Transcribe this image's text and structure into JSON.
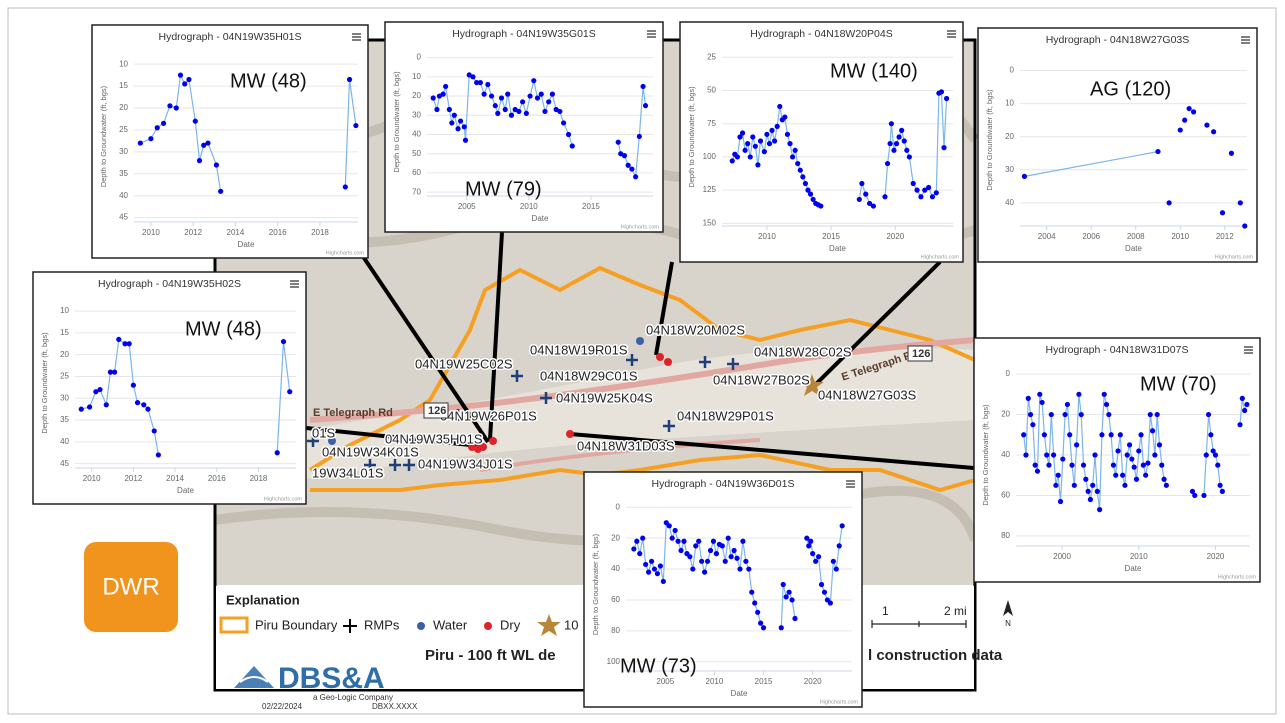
{
  "chart_data": [
    {
      "type": "line",
      "title": "Hydrograph - 04N19W35H01S",
      "annotation": "MW (48)",
      "y_label": "Depth to Groundwater (ft, bgs)",
      "x_label": "Date",
      "credit": "Highcharts.com",
      "color": "#0000ee",
      "line_color": "#7cb5ec",
      "reversed": true,
      "grid": true,
      "xlim": [
        2009.2,
        2019.8
      ],
      "xticks": [
        2010,
        2012,
        2014,
        2016,
        2018
      ],
      "ylim": [
        7,
        46
      ],
      "yticks": [
        10,
        15,
        20,
        25,
        30,
        35,
        40,
        45
      ],
      "x": [
        2009.5,
        2010,
        2010.3,
        2010.6,
        2010.9,
        2011.2,
        2011.4,
        2011.6,
        2011.8,
        2012.1,
        2012.3,
        2012.5,
        2012.7,
        2013.1,
        2013.3,
        null,
        2019.2,
        2019.4,
        2019.7
      ],
      "values": [
        28,
        27,
        24.5,
        23.5,
        19.5,
        20,
        12.5,
        14.5,
        13.5,
        23,
        32,
        28.5,
        28,
        33,
        39,
        null,
        38,
        13.5,
        24
      ]
    },
    {
      "type": "line",
      "title": "Hydrograph - 04N19W35G01S",
      "annotation": "MW (79)",
      "y_label": "Depth to Groundwater (ft, bgs)",
      "x_label": "Date",
      "credit": "Highcharts.com",
      "color": "#0000ee",
      "line_color": "#7cb5ec",
      "reversed": true,
      "grid": true,
      "xlim": [
        2001.8,
        2020
      ],
      "xticks": [
        2005,
        2010,
        2015
      ],
      "ylim": [
        -5,
        72
      ],
      "yticks": [
        0,
        10,
        20,
        30,
        40,
        50,
        60,
        70
      ],
      "x": [
        2002.3,
        2002.6,
        2002.8,
        2003.1,
        2003.3,
        2003.6,
        2003.8,
        2004,
        2004.3,
        2004.5,
        2004.8,
        2004.9,
        2005.2,
        2005.5,
        2005.8,
        2006.1,
        2006.4,
        2006.7,
        2007,
        2007.3,
        2007.5,
        2007.8,
        2008.1,
        2008.3,
        2008.6,
        2008.9,
        2009.2,
        2009.5,
        2009.8,
        2010.1,
        2010.4,
        2010.7,
        2011,
        2011.3,
        2011.6,
        2011.9,
        2012.2,
        2012.5,
        2012.8,
        2013.2,
        2013.5,
        null,
        2017.2,
        2017.4,
        2017.7,
        2018,
        2018.3,
        2018.6,
        2018.9,
        2019.2,
        2019.4
      ],
      "values": [
        21,
        27,
        20,
        19,
        15,
        27,
        34,
        30,
        37,
        33,
        36,
        43,
        9,
        10,
        13,
        13,
        19,
        14,
        20,
        25,
        29,
        21,
        27,
        19,
        30,
        27,
        28,
        23,
        29,
        20,
        12,
        21,
        19,
        28,
        23,
        19,
        27,
        28,
        34,
        40,
        46,
        null,
        44,
        50,
        51,
        56,
        58,
        62,
        41,
        15,
        25
      ]
    },
    {
      "type": "line",
      "title": "Hydrograph - 04N18W20P04S",
      "annotation": "MW (140)",
      "y_label": "Depth to Groundwater (ft, bgs)",
      "x_label": "Date",
      "credit": "Highcharts.com",
      "color": "#0000ee",
      "line_color": "#7cb5ec",
      "reversed": true,
      "grid": true,
      "xlim": [
        2006.5,
        2024.5
      ],
      "xticks": [
        2010,
        2015,
        2020
      ],
      "ylim": [
        18,
        152
      ],
      "yticks": [
        25,
        50,
        75,
        100,
        125,
        150
      ],
      "x": [
        2007.3,
        2007.5,
        2007.7,
        2007.9,
        2008.1,
        2008.3,
        2008.5,
        2008.7,
        2008.9,
        2009.1,
        2009.3,
        2009.5,
        2009.8,
        2010,
        2010.2,
        2010.4,
        2010.6,
        2010.8,
        2011,
        2011.2,
        2011.4,
        2011.6,
        2011.8,
        2012,
        2012.2,
        2012.4,
        2012.6,
        2012.8,
        2013,
        2013.2,
        2013.4,
        2013.6,
        2013.8,
        2014,
        2014.2,
        null,
        2017.2,
        2017.4,
        2017.7,
        2018,
        2018.3,
        null,
        2019.2,
        2019.4,
        2019.6,
        2019.7,
        2019.9,
        2020.1,
        2020.3,
        2020.5,
        2020.7,
        2020.9,
        2021.1,
        2021.4,
        2021.7,
        2022,
        2022.3,
        2022.6,
        2022.9,
        2023.2,
        2023.4,
        2023.6,
        2023.8,
        2024
      ],
      "values": [
        103,
        98,
        100,
        85,
        82,
        95,
        90,
        100,
        85,
        92,
        106,
        88,
        96,
        83,
        90,
        80,
        88,
        77,
        62,
        72,
        70,
        83,
        90,
        100,
        95,
        105,
        110,
        115,
        120,
        125,
        128,
        132,
        135,
        136,
        137,
        null,
        132,
        120,
        128,
        135,
        137,
        null,
        130,
        105,
        90,
        75,
        95,
        90,
        85,
        80,
        88,
        95,
        100,
        120,
        125,
        130,
        125,
        123,
        130,
        127,
        52,
        51,
        93,
        56
      ]
    },
    {
      "type": "line",
      "title": "Hydrograph - 04N18W27G03S",
      "annotation": "AG (120)",
      "y_label": "Depth to Groundwater (ft, bgs)",
      "x_label": "Date",
      "credit": "Highcharts.com",
      "color": "#0000ee",
      "line_color": "#7cb5ec",
      "reversed": true,
      "grid": true,
      "xlim": [
        2002.8,
        2013
      ],
      "xticks": [
        2004,
        2006,
        2008,
        2010,
        2012
      ],
      "ylim": [
        -5,
        47
      ],
      "yticks": [
        0,
        10,
        20,
        30,
        40
      ],
      "x": [
        2003,
        2009,
        null,
        2009.5,
        null,
        2010,
        null,
        2010.2,
        null,
        2010.4,
        null,
        2010.6,
        null,
        2011.2,
        null,
        2011.5,
        null,
        2011.9,
        null,
        2012.3,
        null,
        2012.7,
        null,
        2012.9
      ],
      "values": [
        32,
        24.5,
        null,
        40,
        null,
        18,
        null,
        15,
        null,
        11.5,
        null,
        12.5,
        null,
        16.5,
        null,
        18.5,
        null,
        43,
        null,
        25,
        null,
        40,
        null,
        47
      ]
    },
    {
      "type": "line",
      "title": "Hydrograph - 04N19W35H02S",
      "annotation": "MW (48)",
      "y_label": "Depth to Groundwater (ft, bgs)",
      "x_label": "Date",
      "credit": "Highcharts.com",
      "color": "#0000ee",
      "line_color": "#7cb5ec",
      "reversed": true,
      "grid": true,
      "xlim": [
        2009.2,
        2019.8
      ],
      "xticks": [
        2010,
        2012,
        2014,
        2016,
        2018
      ],
      "ylim": [
        7,
        46
      ],
      "yticks": [
        10,
        15,
        20,
        25,
        30,
        35,
        40,
        45
      ],
      "x": [
        2009.5,
        2009.9,
        2010.2,
        2010.4,
        2010.7,
        2010.9,
        2011.1,
        2011.3,
        2011.6,
        2011.8,
        2012,
        2012.2,
        2012.5,
        2012.7,
        2013,
        2013.2,
        null,
        2018.9,
        2019.2,
        2019.5
      ],
      "values": [
        32.5,
        32,
        28.5,
        28,
        31.5,
        24,
        24,
        16.5,
        17.5,
        17.5,
        27,
        31,
        31.5,
        32.5,
        37.5,
        43,
        null,
        42.5,
        17,
        28.5
      ]
    },
    {
      "type": "line",
      "title": "Hydrograph - 04N18W31D07S",
      "annotation": "MW (70)",
      "y_label": "Depth to Groundwater (ft, bgs)",
      "x_label": "Date",
      "credit": "Highcharts.com",
      "color": "#0000ee",
      "line_color": "#7cb5ec",
      "reversed": true,
      "grid": true,
      "xlim": [
        1994,
        2024.5
      ],
      "xticks": [
        2000,
        2010,
        2020
      ],
      "ylim": [
        -5,
        85
      ],
      "yticks": [
        0,
        20,
        40,
        60,
        80
      ],
      "x": [
        1995,
        1995.3,
        1995.6,
        1995.9,
        1996.2,
        1996.5,
        1996.8,
        1997.1,
        1997.4,
        1997.7,
        1998,
        1998.3,
        1998.6,
        1998.9,
        1999.2,
        1999.5,
        1999.8,
        2000.1,
        2000.4,
        2000.7,
        2001,
        2001.3,
        2001.6,
        2001.9,
        2002.2,
        2002.5,
        2002.8,
        2003.1,
        2003.4,
        2003.7,
        2004,
        2004.3,
        2004.6,
        2004.9,
        2005.2,
        2005.5,
        2005.8,
        2006.1,
        2006.4,
        2006.7,
        2007,
        2007.3,
        2007.6,
        2007.9,
        2008.2,
        2008.5,
        2008.8,
        2009.1,
        2009.4,
        2009.7,
        2010,
        2010.3,
        2010.6,
        2010.9,
        2011.2,
        2011.5,
        2011.8,
        2012.1,
        2012.4,
        2012.7,
        2013,
        2013.3,
        2013.6,
        null,
        2017,
        2017.3,
        null,
        2018.5,
        2018.8,
        2019.1,
        2019.4,
        2019.7,
        2020,
        2020.3,
        2020.6,
        2020.9,
        null,
        2023.2,
        2023.5,
        2023.8,
        2024.1
      ],
      "values": [
        30,
        40,
        12,
        20,
        25,
        45,
        48,
        10,
        14,
        30,
        40,
        45,
        20,
        40,
        55,
        50,
        63,
        42,
        20,
        15,
        30,
        45,
        55,
        35,
        10,
        20,
        45,
        52,
        58,
        62,
        55,
        40,
        58,
        67,
        30,
        10,
        15,
        20,
        30,
        45,
        50,
        38,
        30,
        50,
        55,
        40,
        35,
        42,
        46,
        52,
        38,
        30,
        45,
        50,
        44,
        20,
        28,
        40,
        20,
        35,
        45,
        52,
        55,
        null,
        58,
        60,
        null,
        60,
        40,
        20,
        30,
        38,
        40,
        45,
        55,
        58,
        null,
        25,
        12,
        18,
        15
      ]
    },
    {
      "type": "line",
      "title": "Hydrograph - 04N19W36D01S",
      "annotation": "MW (73)",
      "y_label": "Depth to Groundwater (ft, bgs)",
      "x_label": "Date",
      "credit": "Highcharts.com",
      "color": "#0000ee",
      "line_color": "#7cb5ec",
      "reversed": true,
      "grid": true,
      "xlim": [
        2001,
        2024
      ],
      "xticks": [
        2005,
        2010,
        2015,
        2020
      ],
      "ylim": [
        -6,
        106
      ],
      "yticks": [
        0,
        20,
        40,
        60,
        80,
        100
      ],
      "x": [
        2001.8,
        2002.1,
        2002.4,
        2002.7,
        2003,
        2003.3,
        2003.6,
        2003.9,
        2004.2,
        2004.5,
        2004.8,
        2005.1,
        2005.4,
        2005.7,
        2006,
        2006.3,
        2006.6,
        2006.9,
        2007.2,
        2007.5,
        2007.8,
        2008.1,
        2008.4,
        2008.7,
        2009,
        2009.3,
        2009.6,
        2009.9,
        2010.2,
        2010.5,
        2010.8,
        2011.1,
        2011.4,
        2011.7,
        2012,
        2012.3,
        2012.6,
        2012.9,
        2013.2,
        2013.5,
        2013.8,
        2014.1,
        2014.4,
        2014.7,
        2015,
        null,
        2016.8,
        2017,
        2017.3,
        2017.6,
        2017.9,
        2018.2,
        null,
        2019.4,
        2019.6,
        2019.8,
        2020,
        2020.3,
        2020.6,
        2020.9,
        2021.2,
        2021.5,
        2021.8,
        2022.1,
        2022.4,
        2022.7,
        2023
      ],
      "values": [
        27,
        22,
        30,
        20,
        37,
        42,
        35,
        40,
        43,
        38,
        48,
        10,
        12,
        20,
        15,
        22,
        28,
        22,
        30,
        32,
        40,
        25,
        22,
        35,
        42,
        35,
        28,
        22,
        30,
        24,
        25,
        35,
        20,
        32,
        28,
        33,
        40,
        22,
        35,
        40,
        55,
        62,
        68,
        75,
        78,
        null,
        78,
        50,
        58,
        55,
        60,
        72,
        null,
        20,
        25,
        22,
        30,
        35,
        32,
        50,
        55,
        60,
        62,
        35,
        40,
        25,
        12
      ]
    }
  ],
  "map": {
    "well_labels": [
      "04N18W20M02S",
      "04N18W19R01S",
      "04N18W28C02S",
      "04N19W25C02S",
      "04N18W29C01S",
      "04N18W27B02S",
      "04N19W25K04S",
      "04N18W27G03S",
      "04N19W26P01S",
      "04N18W29P01S",
      "04N19W35H01S",
      "04N18W31D03S",
      "01S",
      "04N19W34K01S",
      "19W34L01S",
      "04N19W34J01S"
    ],
    "road_labels": [
      "E Telegraph Rd",
      "126",
      "E Telegraph Rd",
      "126"
    ]
  },
  "legend": {
    "title": "Explanation",
    "items": [
      "Piru Boundary",
      "RMPs",
      "Water",
      "Dry",
      "10"
    ]
  },
  "scale": {
    "labels": [
      "1",
      "2 mi"
    ],
    "north": "N"
  },
  "footer": {
    "caption_parts": [
      "Piru - 100 ft WL de",
      "l construction data"
    ],
    "logo": "DBS&A",
    "company": "a Geo-Logic Company",
    "date": "02/22/2024",
    "project": "DBXX.XXXX"
  },
  "badge": "DWR"
}
